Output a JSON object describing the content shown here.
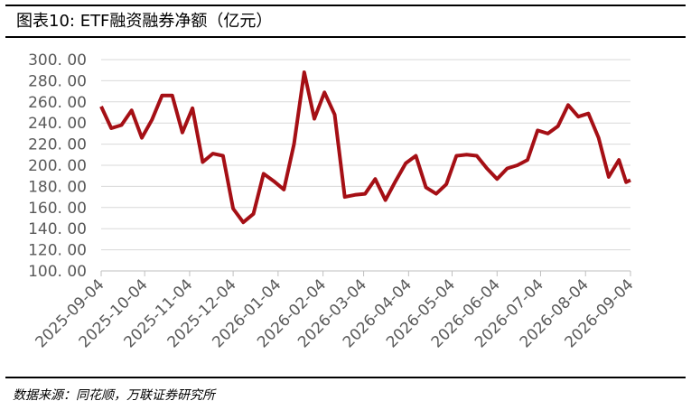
{
  "chart_data": {
    "type": "line",
    "title": "图表10: ETF融资融券净额（亿元）",
    "source": "数据来源：同花顺，万联证券研究所",
    "x": [
      "2025-09-04",
      "2025-09-11",
      "2025-09-18",
      "2025-09-25",
      "2025-10-02",
      "2025-10-09",
      "2025-10-16",
      "2025-10-23",
      "2025-10-30",
      "2025-11-06",
      "2025-11-13",
      "2025-11-20",
      "2025-11-27",
      "2025-12-04",
      "2025-12-11",
      "2025-12-18",
      "2025-12-25",
      "2026-01-01",
      "2026-01-08",
      "2026-01-15",
      "2026-01-22",
      "2026-01-29",
      "2026-02-05",
      "2026-02-12",
      "2026-02-19",
      "2026-02-26",
      "2026-03-05",
      "2026-03-12",
      "2026-03-19",
      "2026-03-26",
      "2026-04-02",
      "2026-04-09",
      "2026-04-16",
      "2026-04-23",
      "2026-04-30",
      "2026-05-07",
      "2026-05-14",
      "2026-05-21",
      "2026-05-28",
      "2026-06-04",
      "2026-06-11",
      "2026-06-18",
      "2026-06-25",
      "2026-07-02",
      "2026-07-09",
      "2026-07-16",
      "2026-07-23",
      "2026-07-30",
      "2026-08-06",
      "2026-08-13",
      "2026-08-20",
      "2026-08-27",
      "2026-09-01",
      "2026-09-04"
    ],
    "series": [
      {
        "color": "#a50f15",
        "values": [
          255.6,
          235,
          238,
          252,
          226,
          243,
          266,
          266,
          231,
          254,
          203,
          211,
          209,
          159,
          146,
          154,
          192,
          185,
          177,
          220,
          288,
          244,
          269,
          248,
          170,
          172,
          173,
          187,
          167,
          185,
          202,
          209,
          179,
          173,
          182,
          209,
          210,
          209,
          197,
          187,
          197,
          200,
          205,
          233,
          230,
          237,
          257,
          246,
          249,
          226,
          189,
          205,
          184,
          186
        ]
      }
    ],
    "xlim": [
      "2025-09-04",
      "2026-09-04"
    ],
    "xticks": [
      "2025-09-04",
      "2025-10-04",
      "2025-11-04",
      "2025-12-04",
      "2026-01-04",
      "2026-02-04",
      "2026-03-04",
      "2026-04-04",
      "2026-05-04",
      "2026-06-04",
      "2026-07-04",
      "2026-08-04",
      "2026-09-04"
    ],
    "ylim": [
      100,
      300
    ],
    "yticks": [
      {
        "value": 100,
        "label": "100. 00"
      },
      {
        "value": 120,
        "label": "120. 00"
      },
      {
        "value": 140,
        "label": "140. 00"
      },
      {
        "value": 160,
        "label": "160. 00"
      },
      {
        "value": 180,
        "label": "180. 00"
      },
      {
        "value": 200,
        "label": "200. 00"
      },
      {
        "value": 220,
        "label": "220. 00"
      },
      {
        "value": 240,
        "label": "240. 00"
      },
      {
        "value": 260,
        "label": "260. 00"
      },
      {
        "value": 280,
        "label": "280. 00"
      },
      {
        "value": 300,
        "label": "300. 00"
      }
    ],
    "grid": true
  }
}
